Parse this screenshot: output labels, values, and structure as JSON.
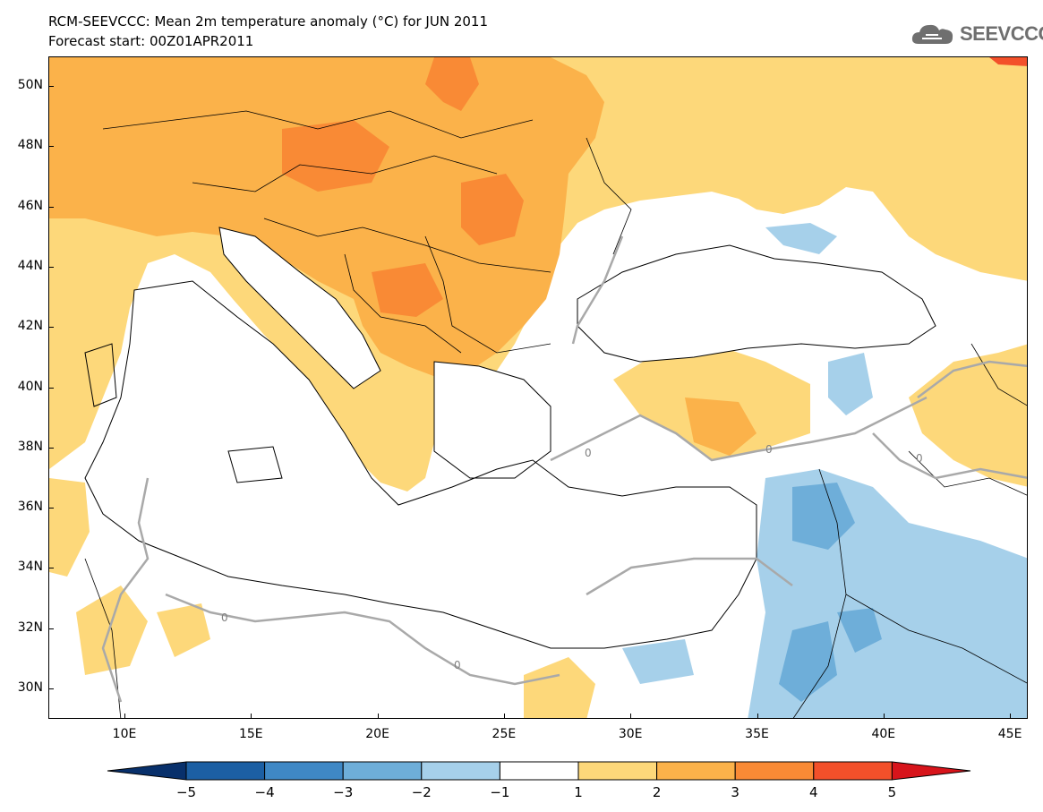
{
  "header": {
    "title": "RCM-SEEVCCC: Mean 2m temperature anomaly (°C) for JUN 2011",
    "subtitle": "Forecast start: 00Z01APR2011"
  },
  "logo": {
    "text": "SEEVCCC",
    "icon": "cloud-logo-icon"
  },
  "map": {
    "lat_labels": [
      "50N",
      "48N",
      "46N",
      "44N",
      "42N",
      "40N",
      "38N",
      "36N",
      "34N",
      "32N",
      "30N"
    ],
    "lon_labels": [
      "10E",
      "15E",
      "20E",
      "25E",
      "30E",
      "35E",
      "40E",
      "45E"
    ],
    "contour_label": "0"
  },
  "legend": {
    "labels": [
      "-5",
      "-4",
      "-3",
      "-2",
      "-1",
      "1",
      "2",
      "3",
      "4",
      "5"
    ],
    "colors": {
      "below_min": "#08306b",
      "bins": [
        "#1c5fa3",
        "#3f88c5",
        "#6eaed9",
        "#a6d0ea",
        "#ffffff",
        "#fdd87a",
        "#fbb24a",
        "#f98a35",
        "#f3502a"
      ],
      "above_max": "#d7141b"
    }
  }
}
